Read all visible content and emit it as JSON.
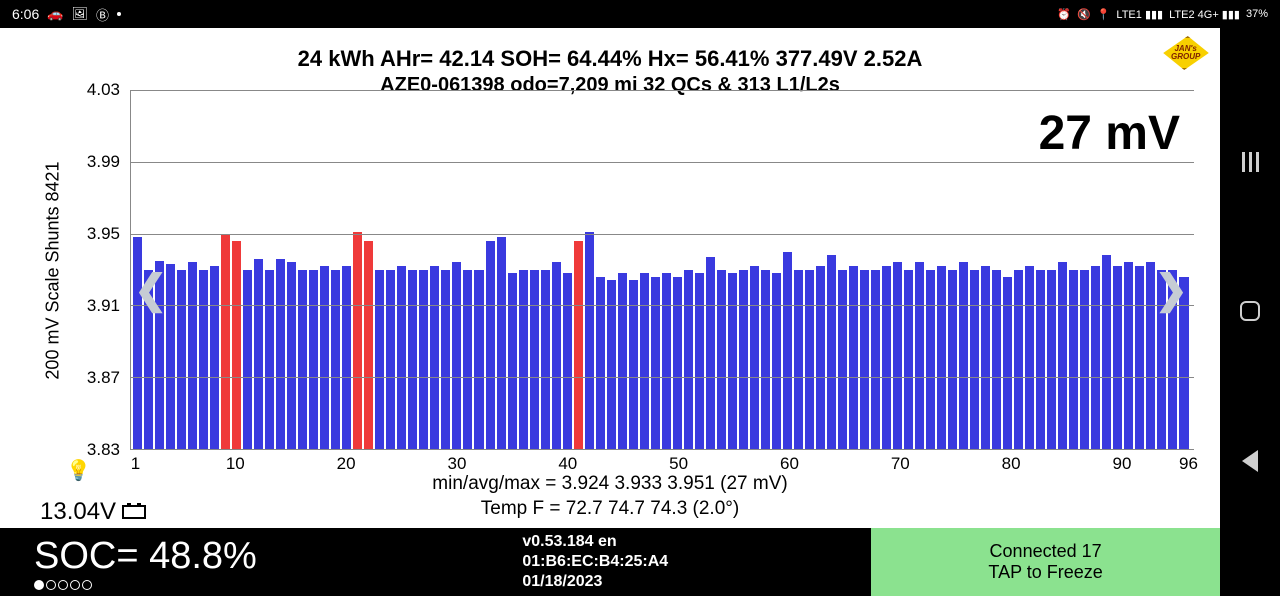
{
  "status": {
    "time": "6:06",
    "left_icons": [
      "🚗",
      "🖼",
      "Ⓑ"
    ],
    "right_text": [
      "⏰",
      "🔇",
      "📍",
      "LTE1 ▮▮▮",
      "LTE2 4G+ ▮▮▮"
    ],
    "battery_pct": "37%"
  },
  "logo": {
    "line1": "JAN's",
    "line2": "GROUP"
  },
  "header": {
    "line1": "24 kWh  AHr= 42.14   SOH= 64.44%   Hx= 56.41%   377.49V 2.52A",
    "line2": "AZE0-061398 odo=7,209 mi  32 QCs & 313 L1/L2s"
  },
  "big_reading": "27 mV",
  "chart": {
    "type": "bar",
    "ylabel": "200 mV Scale   Shunts 8421",
    "ymin": 3.83,
    "ymax": 4.03,
    "yticks": [
      3.83,
      3.87,
      3.91,
      3.95,
      3.99,
      4.03
    ],
    "xmin": 1,
    "xmax": 96,
    "xticks": [
      1,
      10,
      20,
      30,
      40,
      50,
      60,
      70,
      80,
      90,
      96
    ],
    "grid_color": "#888888",
    "background": "#ffffff",
    "bar_color": "#3a3adf",
    "highlight_color": "#ef3a3a",
    "highlight_indices": [
      9,
      10,
      21,
      22,
      41
    ],
    "values": [
      3.948,
      3.93,
      3.935,
      3.933,
      3.93,
      3.934,
      3.93,
      3.932,
      3.95,
      3.946,
      3.93,
      3.936,
      3.93,
      3.936,
      3.934,
      3.93,
      3.93,
      3.932,
      3.93,
      3.932,
      3.951,
      3.946,
      3.93,
      3.93,
      3.932,
      3.93,
      3.93,
      3.932,
      3.93,
      3.934,
      3.93,
      3.93,
      3.946,
      3.948,
      3.928,
      3.93,
      3.93,
      3.93,
      3.934,
      3.928,
      3.946,
      3.951,
      3.926,
      3.924,
      3.928,
      3.924,
      3.928,
      3.926,
      3.928,
      3.926,
      3.93,
      3.928,
      3.937,
      3.93,
      3.928,
      3.93,
      3.932,
      3.93,
      3.928,
      3.94,
      3.93,
      3.93,
      3.932,
      3.938,
      3.93,
      3.932,
      3.93,
      3.93,
      3.932,
      3.934,
      3.93,
      3.934,
      3.93,
      3.932,
      3.93,
      3.934,
      3.93,
      3.932,
      3.93,
      3.926,
      3.93,
      3.932,
      3.93,
      3.93,
      3.934,
      3.93,
      3.93,
      3.932,
      3.938,
      3.932,
      3.934,
      3.932,
      3.934,
      3.93,
      3.93,
      3.926
    ]
  },
  "footer": {
    "stats1": "min/avg/max = 3.924 3.933 3.951  (27 mV)",
    "stats2": "Temp F = 72.7  74.7  74.3  (2.0°)"
  },
  "aux_voltage": "13.04V",
  "bottom": {
    "soc_label": "SOC= 48.8%",
    "version": "v0.53.184 en",
    "mac": "01:B6:EC:B4:25:A4",
    "date": "01/18/2023",
    "connected": "Connected 17",
    "tap": "TAP to Freeze",
    "connected_bg": "#8be28f"
  }
}
